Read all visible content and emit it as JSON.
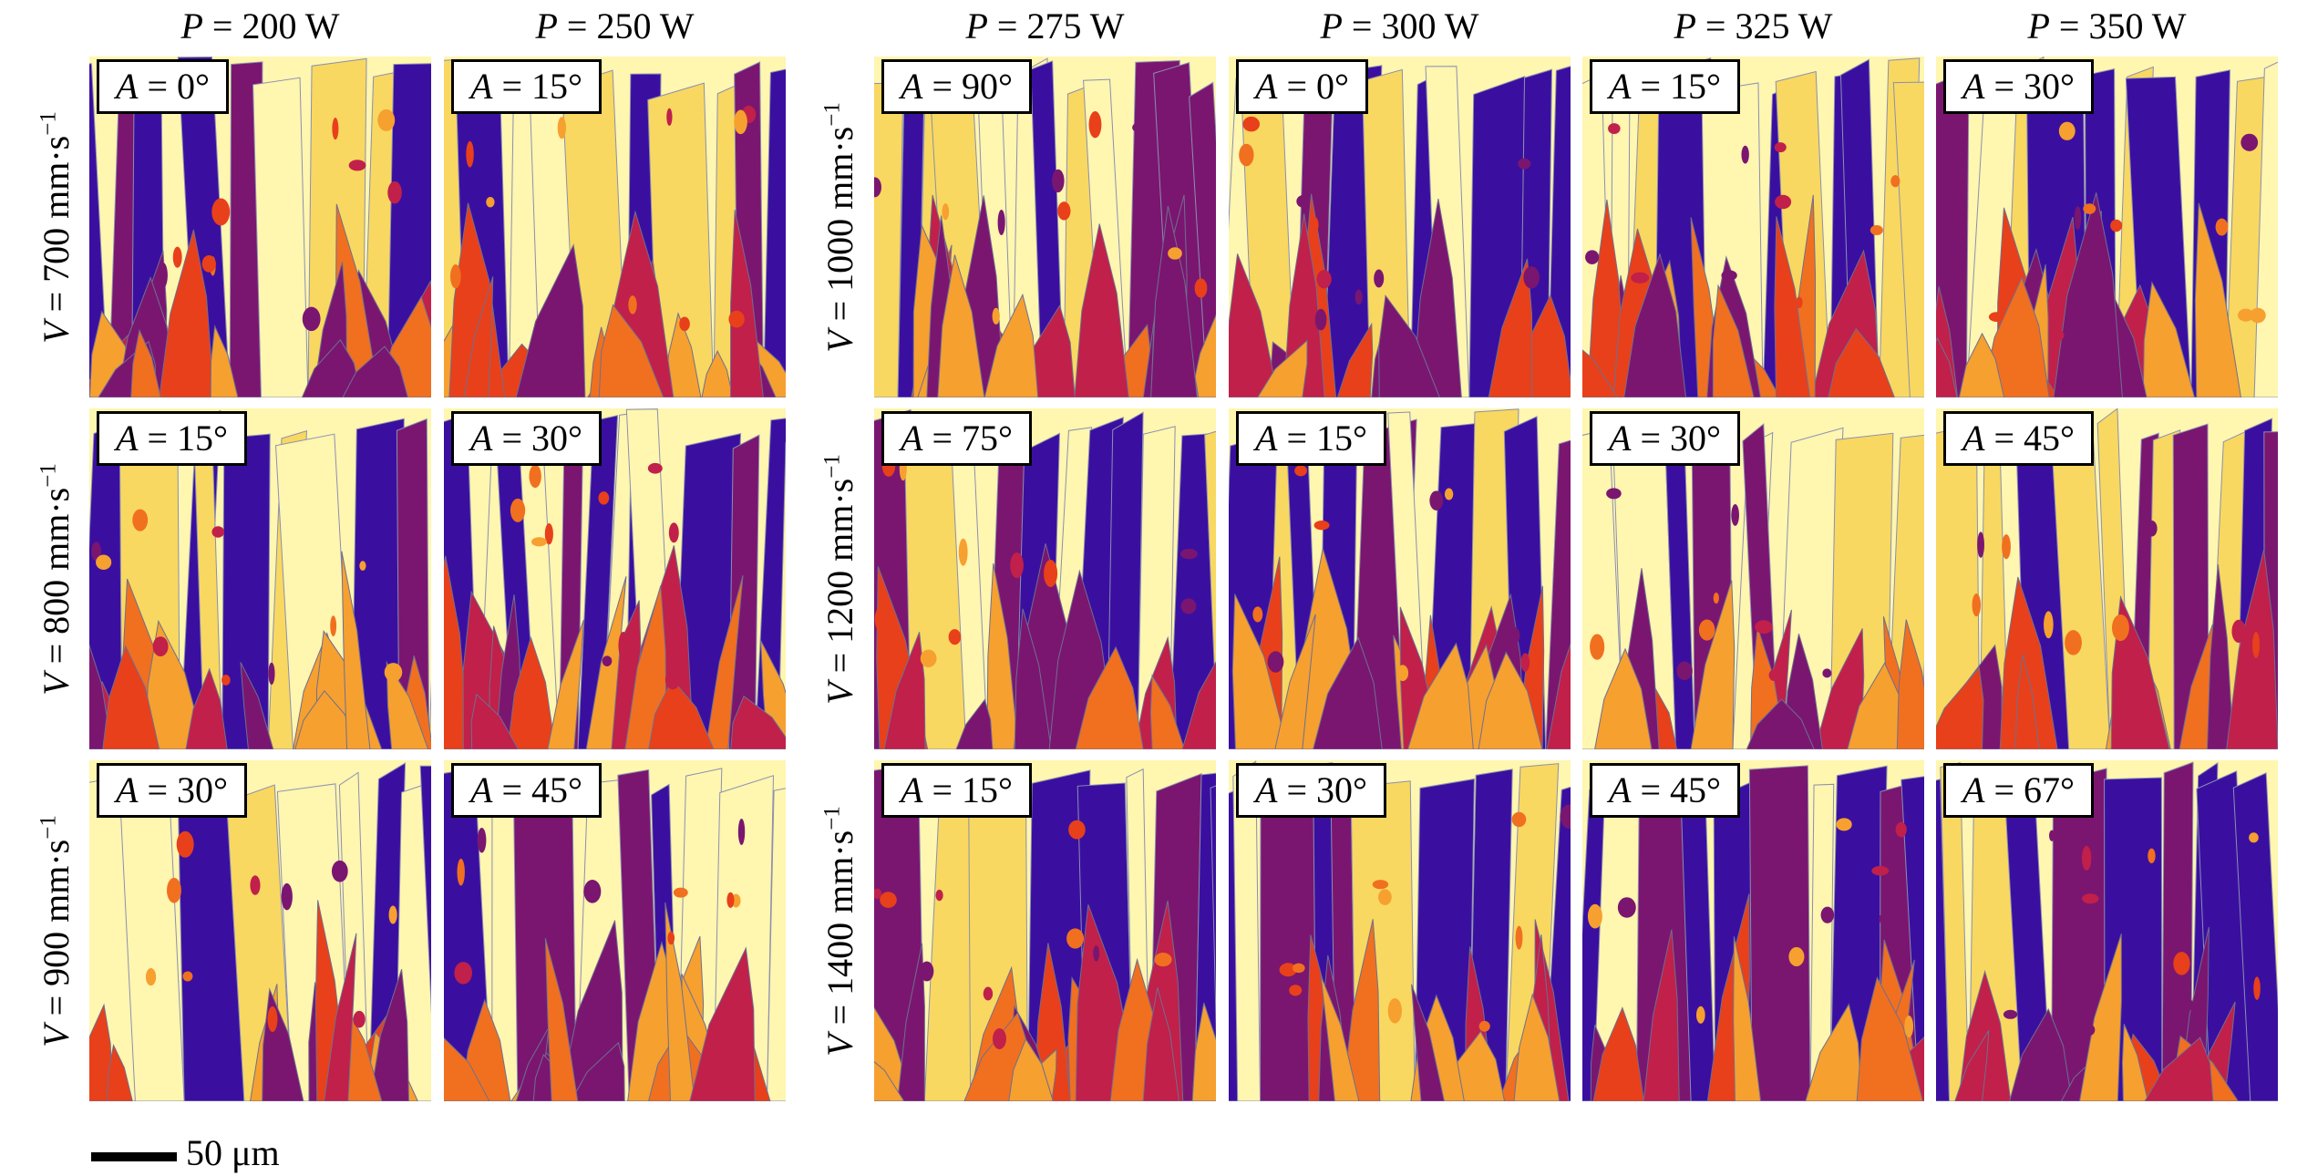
{
  "columns": [
    {
      "symbol": "P",
      "value": "= 200 W"
    },
    {
      "symbol": "P",
      "value": "= 250 W"
    },
    {
      "symbol": "P",
      "value": "= 275 W"
    },
    {
      "symbol": "P",
      "value": "= 300 W"
    },
    {
      "symbol": "P",
      "value": "= 325 W"
    },
    {
      "symbol": "P",
      "value": "= 350 W"
    }
  ],
  "rows_left": [
    {
      "symbol": "V",
      "value": "= 700 mm·s",
      "exp": "−1"
    },
    {
      "symbol": "V",
      "value": "= 800 mm·s",
      "exp": "−1"
    },
    {
      "symbol": "V",
      "value": "= 900 mm·s",
      "exp": "−1"
    }
  ],
  "rows_right": [
    {
      "symbol": "V",
      "value": "= 1000 mm·s",
      "exp": "−1"
    },
    {
      "symbol": "V",
      "value": "= 1200 mm·s",
      "exp": "−1"
    },
    {
      "symbol": "V",
      "value": "= 1400 mm·s",
      "exp": "−1"
    }
  ],
  "panels": [
    [
      "= 0°",
      "= 15°",
      "= 90°",
      "= 0°",
      "= 15°",
      "= 30°"
    ],
    [
      "= 15°",
      "= 30°",
      "= 75°",
      "= 15°",
      "= 30°",
      "= 45°"
    ],
    [
      "= 30°",
      "= 45°",
      "= 15°",
      "= 30°",
      "= 45°",
      "= 67°"
    ]
  ],
  "angle_symbol": "A",
  "palette": [
    "#3a0fa0",
    "#4a12a8",
    "#7a1670",
    "#c0204a",
    "#e8401a",
    "#f07020",
    "#f6a030",
    "#f8d860",
    "#fff6b0"
  ],
  "scale_bar": {
    "label": "50 μm"
  }
}
